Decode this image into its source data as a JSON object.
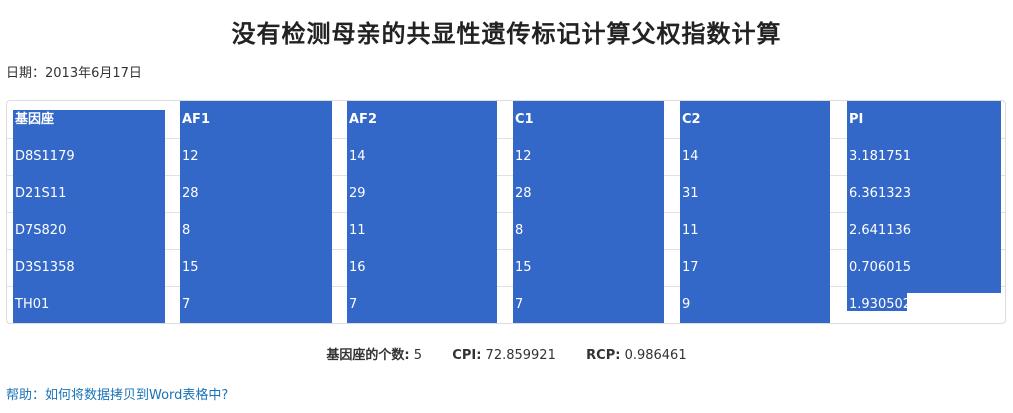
{
  "page": {
    "title": "没有检测母亲的共显性遗传标记计算父权指数计算",
    "date_label": "日期：",
    "date_value": "2013年6月17日"
  },
  "table": {
    "headers": [
      "基因座",
      "AF1",
      "AF2",
      "C1",
      "C2",
      "PI"
    ],
    "rows": [
      [
        "D8S1179",
        "12",
        "14",
        "12",
        "14",
        "3.181751"
      ],
      [
        "D21S11",
        "28",
        "29",
        "28",
        "31",
        "6.361323"
      ],
      [
        "D7S820",
        "8",
        "11",
        "8",
        "11",
        "2.641136"
      ],
      [
        "D3S1358",
        "15",
        "16",
        "15",
        "17",
        "0.706015"
      ],
      [
        "TH01",
        "7",
        "7",
        "7",
        "9",
        "1.930502"
      ]
    ],
    "selection_color": "#3367c8"
  },
  "summary": {
    "count_label": "基因座的个数:",
    "count_value": "5",
    "cpi_label": "CPI:",
    "cpi_value": "72.859921",
    "rcp_label": "RCP:",
    "rcp_value": "0.986461"
  },
  "help": {
    "link_text": "帮助：如何将数据拷贝到Word表格中?"
  }
}
